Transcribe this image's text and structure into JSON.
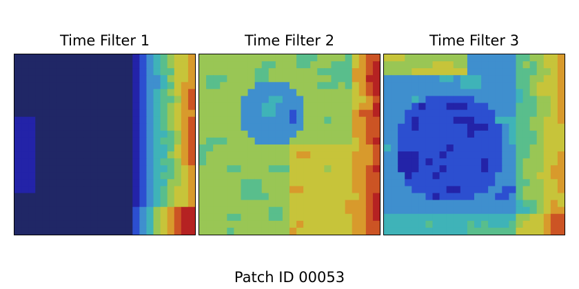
{
  "caption": "Patch ID 00053",
  "colormap": [
    "#202766",
    "#2323a8",
    "#2c4fd0",
    "#3f8fce",
    "#3fb3b8",
    "#59be8c",
    "#99c655",
    "#c7c43a",
    "#d89a2c",
    "#cc5424",
    "#b52222"
  ],
  "chart_data": [
    {
      "type": "heatmap",
      "title": "Time Filter 1",
      "grid": false,
      "axes_ticks": false,
      "value_range": [
        0,
        1
      ],
      "description_of_layout": "",
      "rows": 26,
      "cols": 26,
      "pattern": "mostly low values; high values concentrated along the right edge and bottom-right"
    },
    {
      "type": "heatmap",
      "title": "Time Filter 2",
      "grid": false,
      "axes_ticks": false,
      "value_range": [
        0,
        1
      ],
      "description_of_layout": "",
      "rows": 26,
      "cols": 26,
      "pattern": "medium values overall with a low pocket upper-center; high values along the right edge"
    },
    {
      "type": "heatmap",
      "title": "Time Filter 3",
      "grid": false,
      "axes_ticks": false,
      "value_range": [
        0,
        1
      ],
      "description_of_layout": "",
      "rows": 26,
      "cols": 26,
      "pattern": "low values in the center-left; high values on the right edge and top"
    }
  ]
}
